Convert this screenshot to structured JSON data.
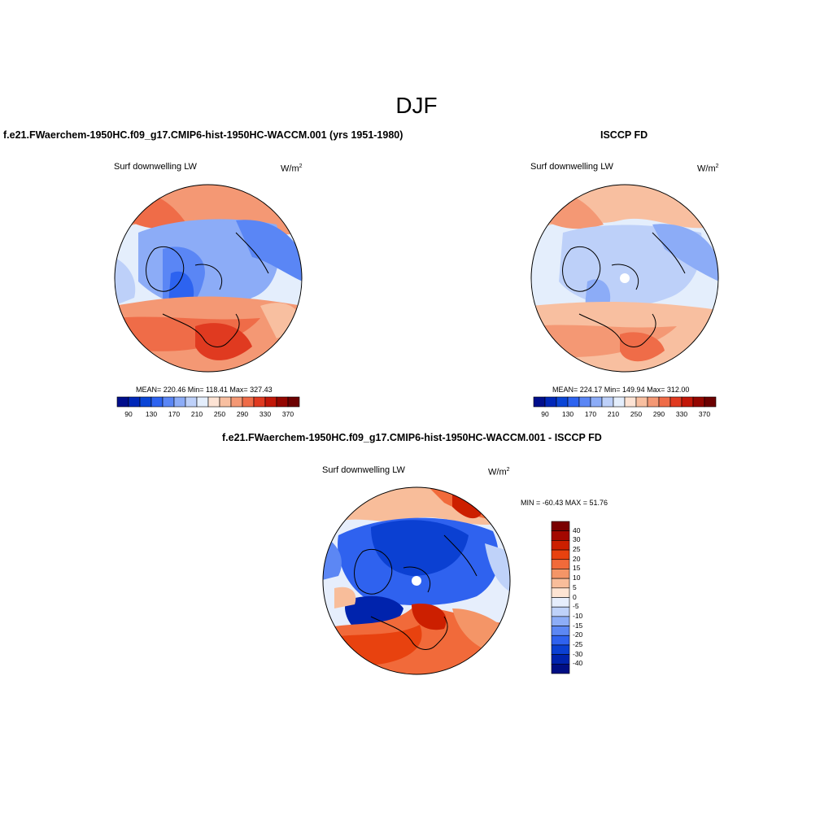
{
  "figure": {
    "season": "DJF",
    "model_title": "f.e21.FWaerchem-1950HC.f09_g17.CMIP6-hist-1950HC-WACCM.001 (yrs 1951-1980)",
    "obs_title": "ISCCP FD",
    "diff_title": "f.e21.FWaerchem-1950HC.f09_g17.CMIP6-hist-1950HC-WACCM.001 - ISCCP FD",
    "variable": "Surf downwelling LW",
    "units_base": "W/m",
    "units_exp": "2"
  },
  "chart_data": [
    {
      "type": "heatmap",
      "projection": "north-polar-stereographic",
      "title": "f.e21.FWaerchem-1950HC.f09_g17.CMIP6-hist-1950HC-WACCM.001 (yrs 1951-1980)",
      "variable": "Surf downwelling LW",
      "units": "W/m2",
      "mean": "220.46",
      "min": "118.41",
      "max": "327.43",
      "stats_text": "MEAN= 220.46  Min= 118.41  Max= 327.43",
      "levels": [
        90,
        110,
        130,
        150,
        170,
        190,
        210,
        230,
        250,
        270,
        290,
        310,
        330,
        350,
        370
      ],
      "tick_labels": [
        "90",
        "130",
        "170",
        "210",
        "250",
        "290",
        "330",
        "370"
      ],
      "colors": [
        "#000e8c",
        "#0027b8",
        "#0a45d6",
        "#2d63f0",
        "#5a86f5",
        "#8cacf7",
        "#bdd0f9",
        "#e4eefc",
        "#fde3d4",
        "#f8bfa0",
        "#f49874",
        "#ef6c48",
        "#e03a20",
        "#c21708",
        "#940600",
        "#6c0000"
      ]
    },
    {
      "type": "heatmap",
      "projection": "north-polar-stereographic",
      "title": "ISCCP FD",
      "variable": "Surf downwelling LW",
      "units": "W/m2",
      "mean": "224.17",
      "min": "149.94",
      "max": "312.00",
      "stats_text": "MEAN= 224.17  Min= 149.94  Max= 312.00",
      "levels": [
        90,
        110,
        130,
        150,
        170,
        190,
        210,
        230,
        250,
        270,
        290,
        310,
        330,
        350,
        370
      ],
      "tick_labels": [
        "90",
        "130",
        "170",
        "210",
        "250",
        "290",
        "330",
        "370"
      ],
      "colors": [
        "#000e8c",
        "#0027b8",
        "#0a45d6",
        "#2d63f0",
        "#5a86f5",
        "#8cacf7",
        "#bdd0f9",
        "#e4eefc",
        "#fde3d4",
        "#f8bfa0",
        "#f49874",
        "#ef6c48",
        "#e03a20",
        "#c21708",
        "#940600",
        "#6c0000"
      ]
    },
    {
      "type": "heatmap",
      "projection": "north-polar-stereographic",
      "title": "f.e21.FWaerchem-1950HC.f09_g17.CMIP6-hist-1950HC-WACCM.001 - ISCCP FD",
      "variable": "Surf downwelling LW",
      "units": "W/m2",
      "min": "-60.43",
      "max": "51.76",
      "stats_text": "MIN = -60.43 MAX =  51.76",
      "levels": [
        -40,
        -30,
        -25,
        -20,
        -15,
        -10,
        -5,
        0,
        5,
        10,
        15,
        20,
        25,
        30,
        40
      ],
      "tick_labels": [
        "40",
        "30",
        "25",
        "20",
        "15",
        "10",
        "5",
        "0",
        "-5",
        "-10",
        "-15",
        "-20",
        "-25",
        "-30",
        "-40"
      ],
      "colors": [
        "#7a0000",
        "#a30800",
        "#cc1f00",
        "#e8420f",
        "#f16a3a",
        "#f49567",
        "#f8bd9a",
        "#fde4d3",
        "#e6eefc",
        "#bfd2f9",
        "#8dadf7",
        "#5c87f4",
        "#2f62ef",
        "#0b40d2",
        "#0023ad",
        "#000e84"
      ]
    }
  ]
}
